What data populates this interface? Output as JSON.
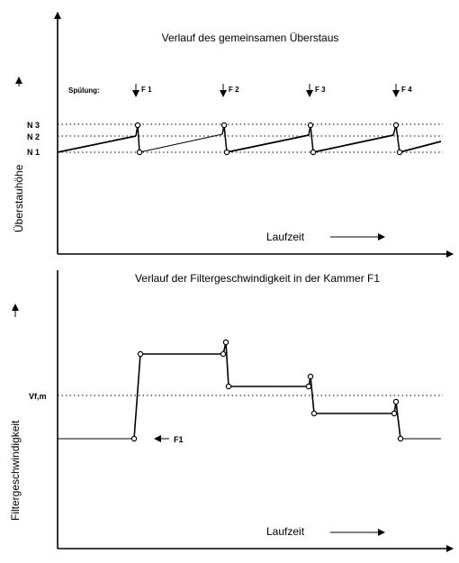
{
  "top_panel": {
    "title": "Verlauf des gemeinsamen Überstaus",
    "y_axis_label": "Überstauhöhe",
    "x_axis_label": "Laufzeit",
    "rinse_label": "Spülung:",
    "rinse_events": [
      "F 1",
      "F 2",
      "F 3",
      "F 4"
    ],
    "levels": [
      "N 3",
      "N 2",
      "N 1"
    ]
  },
  "bottom_panel": {
    "title": "Verlauf der Filtergeschwindigkeit in der Kammer F1",
    "y_axis_label": "Filtergeschwindigkeit",
    "x_axis_label": "Laufzeit",
    "mean_label": "Vf,m",
    "marker_label": "F1"
  }
}
